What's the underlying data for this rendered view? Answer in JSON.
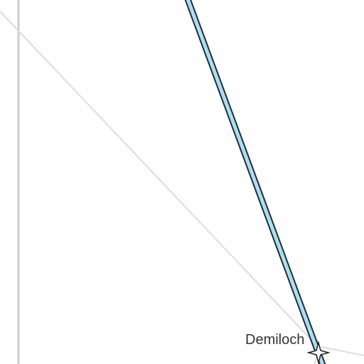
{
  "map": {
    "place": {
      "name": "Demiloch",
      "marker": "star-marker-icon"
    },
    "colors": {
      "background": "#ffffff",
      "road_fill": "#a9dff1",
      "road_casing": "#1f2d36",
      "minor_line": "#dddddd",
      "boundary_line": "#cccccc",
      "label": "#333333"
    }
  }
}
